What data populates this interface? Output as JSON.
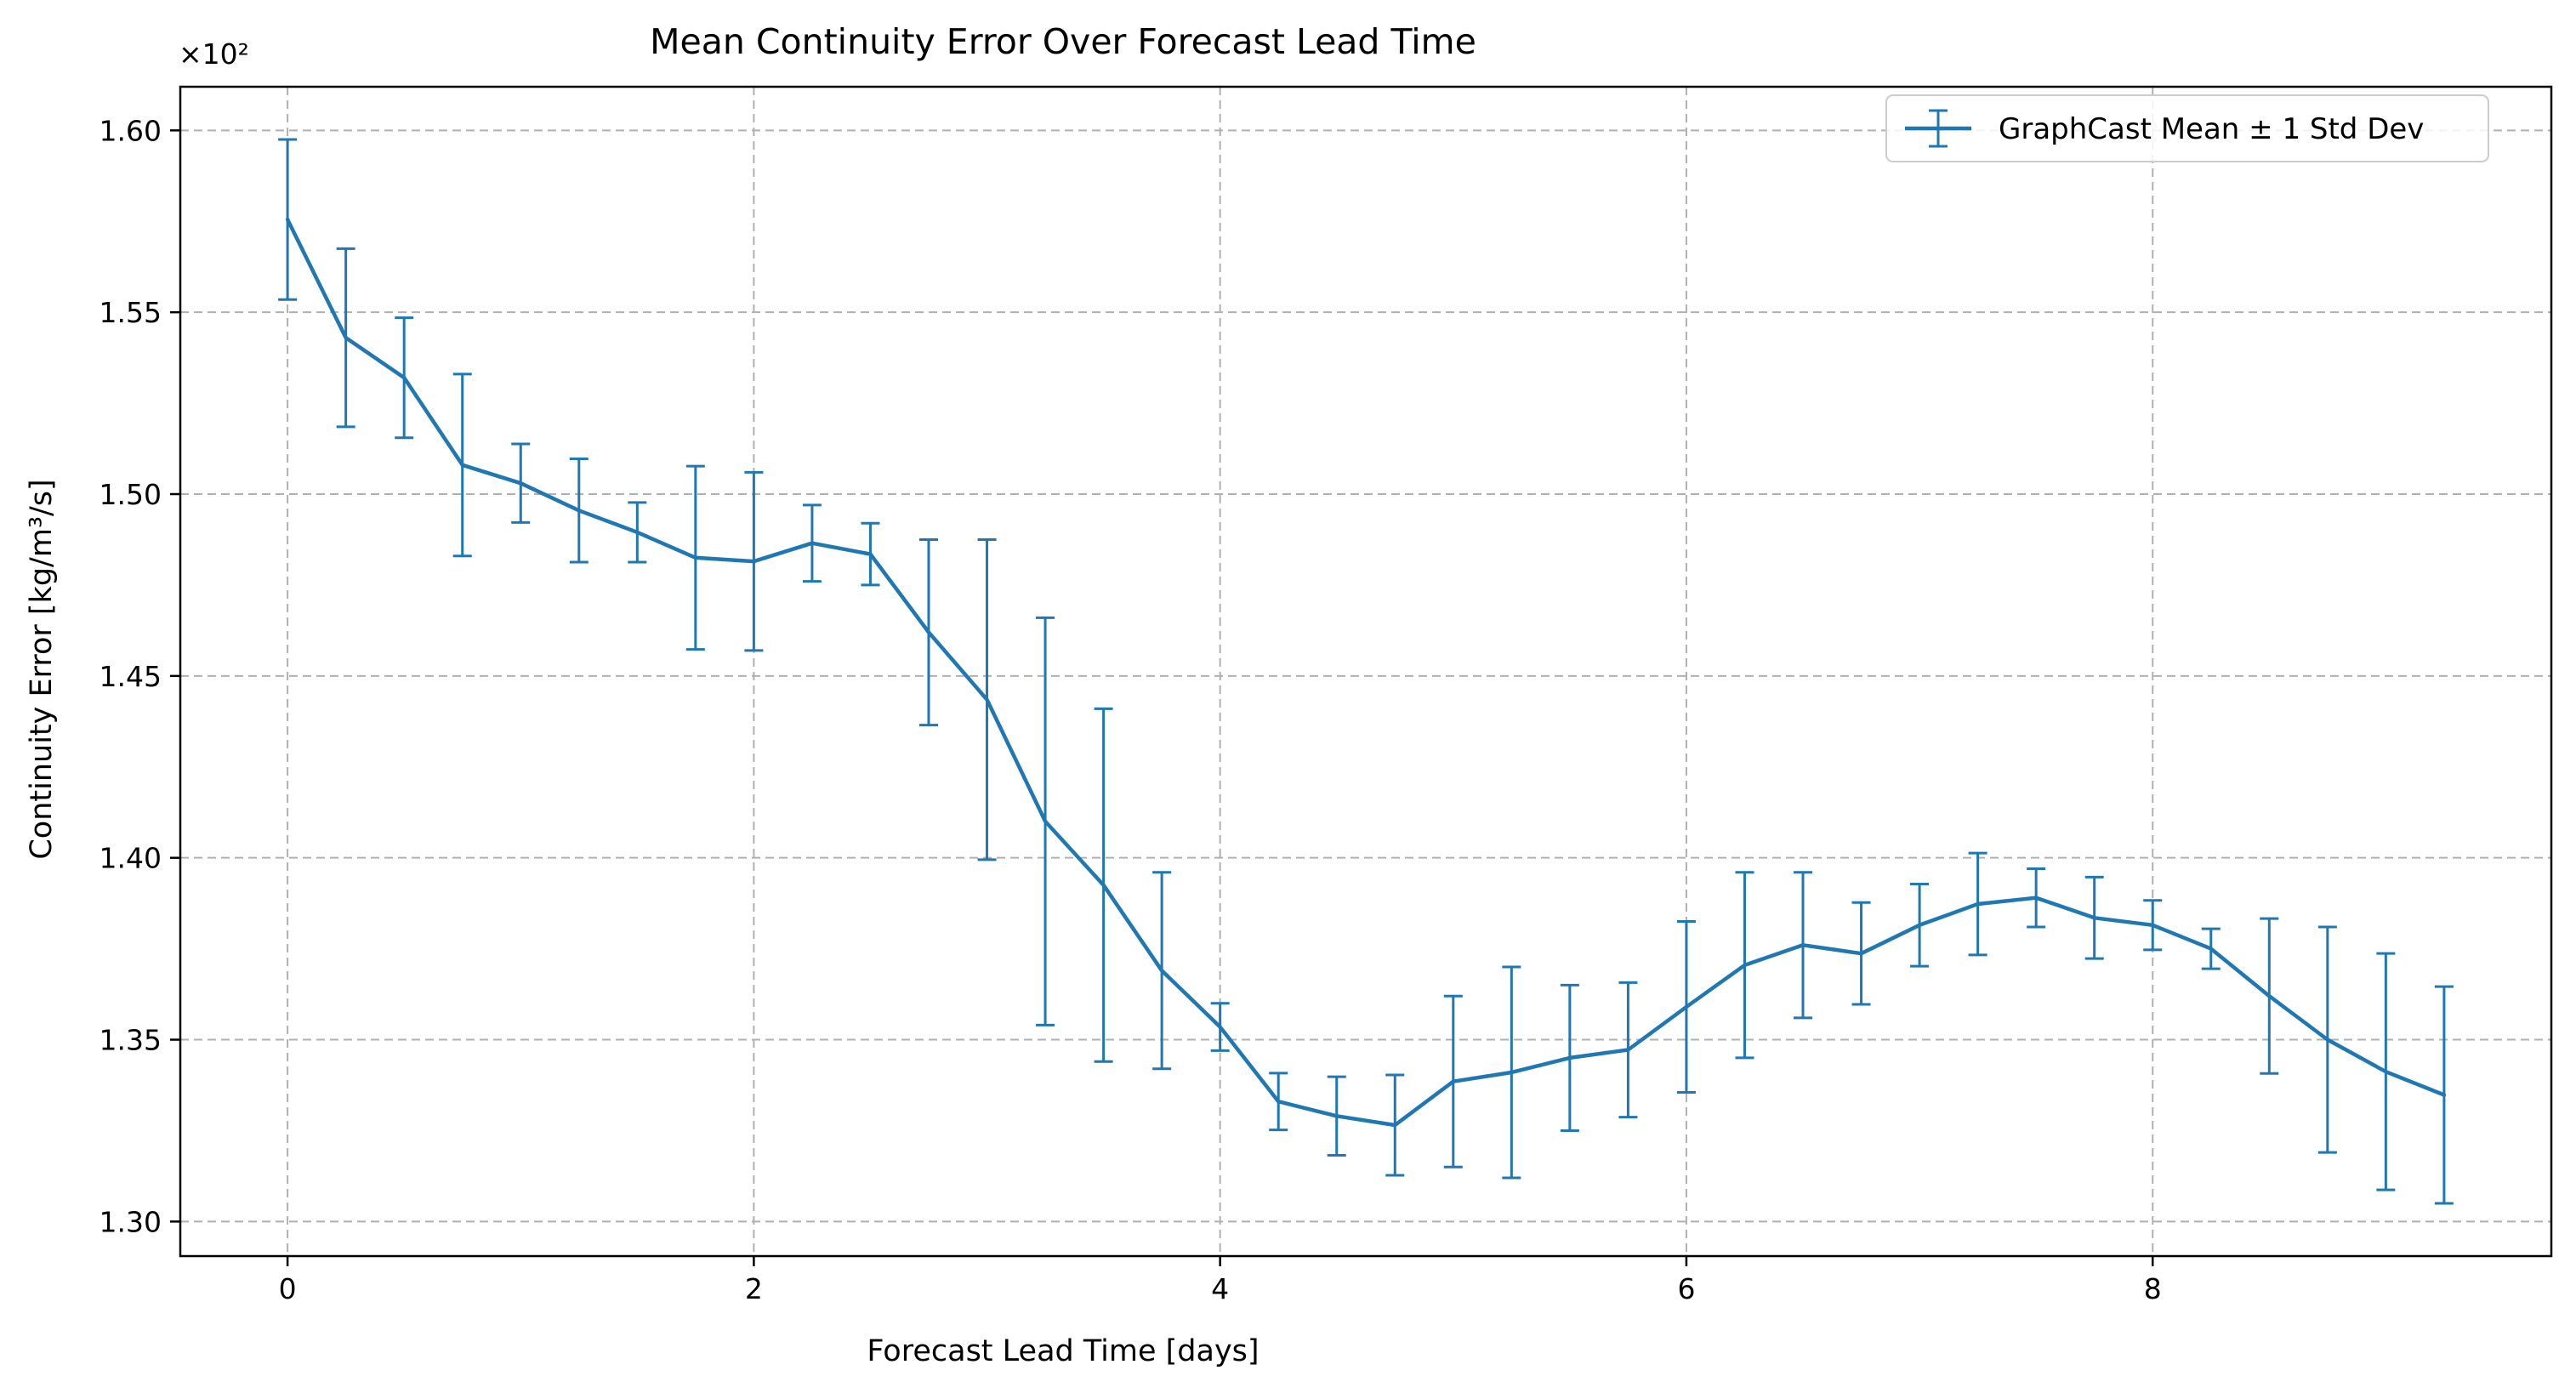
{
  "chart_data": {
    "type": "line",
    "title": "Mean Continuity Error Over Forecast Lead Time",
    "xlabel": "Forecast Lead Time [days]",
    "ylabel": "Continuity Error [kg/m³/s]",
    "y_offset_label": "×10²",
    "xlim": [
      -0.46,
      9.71
    ],
    "ylim": [
      1.2905,
      1.612
    ],
    "xticks": [
      0,
      2,
      4,
      6,
      8
    ],
    "xtick_labels": [
      "0",
      "2",
      "4",
      "6",
      "8"
    ],
    "yticks": [
      1.3,
      1.35,
      1.4,
      1.45,
      1.5,
      1.55,
      1.6
    ],
    "ytick_labels": [
      "1.30",
      "1.35",
      "1.40",
      "1.45",
      "1.50",
      "1.55",
      "1.60"
    ],
    "grid": true,
    "legend_position": "top-right",
    "line_color": "#1f77b4",
    "series": [
      {
        "name": "GraphCast Mean ± 1 Std Dev",
        "x": [
          0,
          0.25,
          0.5,
          0.75,
          1.0,
          1.25,
          1.5,
          1.75,
          2.0,
          2.25,
          2.5,
          2.75,
          3.0,
          3.25,
          3.5,
          3.75,
          4.0,
          4.25,
          4.5,
          4.75,
          5.0,
          5.25,
          5.5,
          5.75,
          6.0,
          6.25,
          6.5,
          6.75,
          7.0,
          7.25,
          7.5,
          7.75,
          8.0,
          8.25,
          8.5,
          8.75,
          9.0,
          9.25
        ],
        "y": [
          1.5755,
          1.543,
          1.532,
          1.508,
          1.503,
          1.4955,
          1.4895,
          1.4825,
          1.4815,
          1.4865,
          1.4835,
          1.462,
          1.4435,
          1.41,
          1.3925,
          1.369,
          1.3535,
          1.333,
          1.329,
          1.3265,
          1.3385,
          1.341,
          1.345,
          1.3472,
          1.359,
          1.3705,
          1.376,
          1.3737,
          1.3815,
          1.3873,
          1.389,
          1.3835,
          1.3815,
          1.375,
          1.362,
          1.35,
          1.3412,
          1.3348
        ],
        "err": [
          0.022,
          0.0245,
          0.0165,
          0.025,
          0.0108,
          0.0142,
          0.0082,
          0.0252,
          0.0245,
          0.0105,
          0.0085,
          0.0255,
          0.044,
          0.056,
          0.0485,
          0.027,
          0.0065,
          0.0078,
          0.0108,
          0.0138,
          0.0235,
          0.029,
          0.02,
          0.0185,
          0.0235,
          0.0255,
          0.02,
          0.014,
          0.0113,
          0.014,
          0.008,
          0.0112,
          0.0068,
          0.0055,
          0.0213,
          0.031,
          0.0325,
          0.0298
        ]
      }
    ]
  }
}
